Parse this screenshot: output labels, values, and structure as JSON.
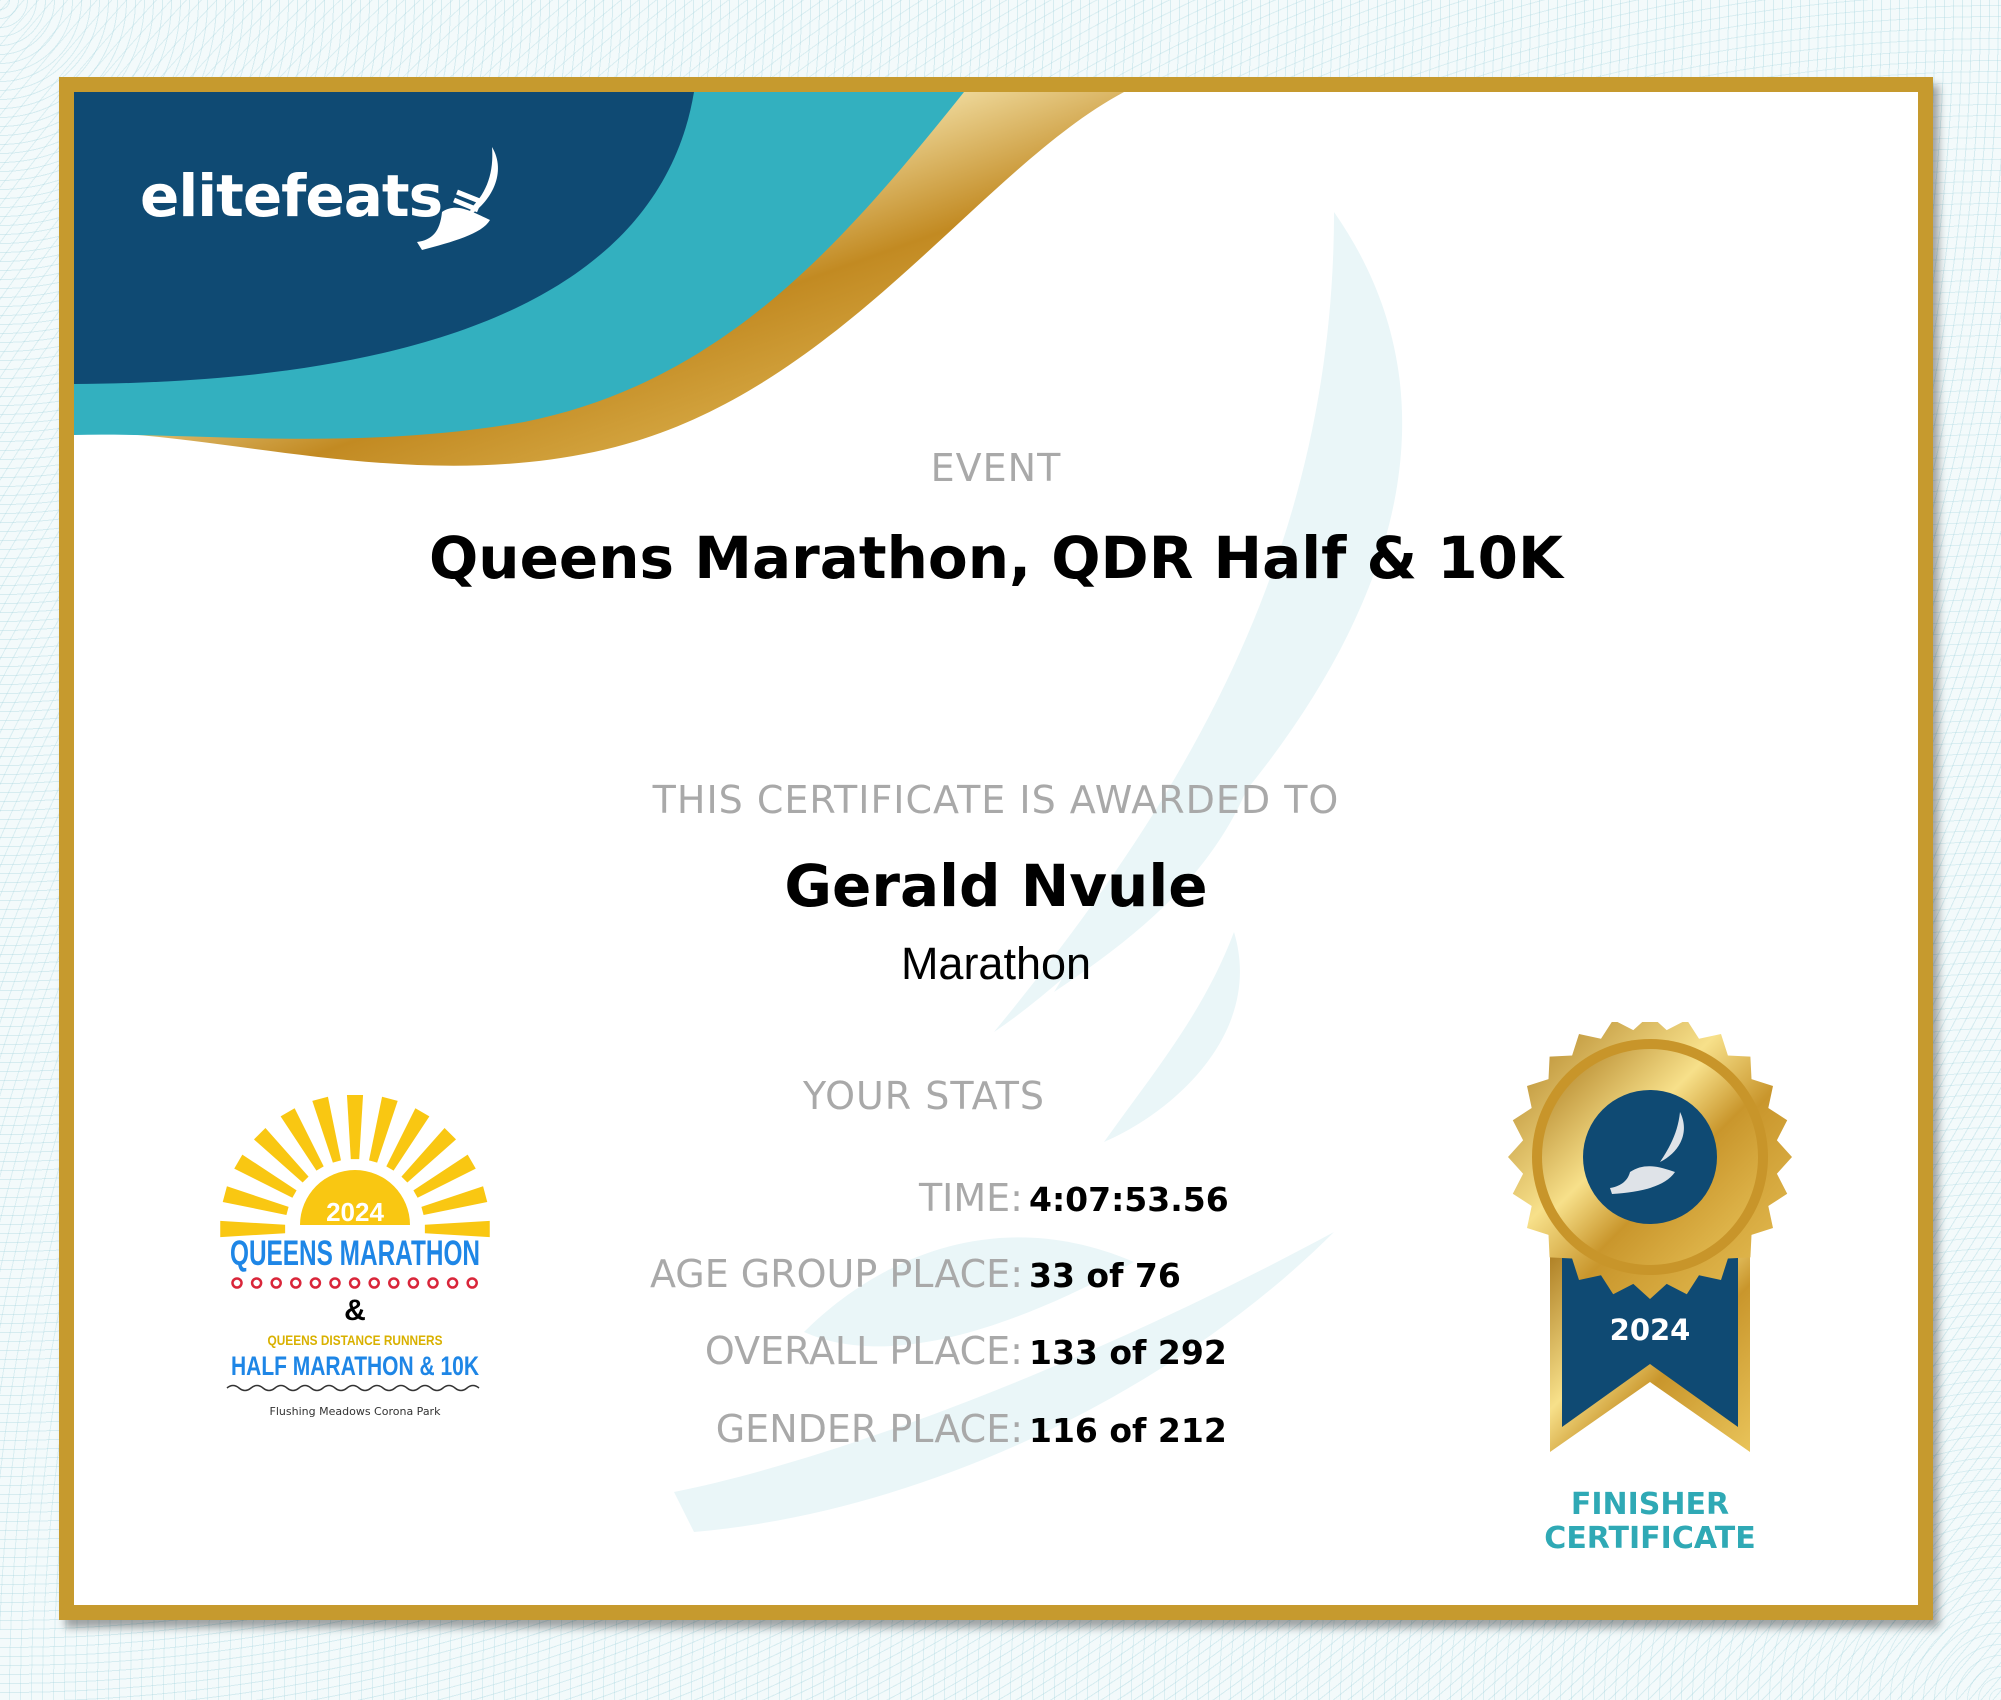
{
  "brand": {
    "name": "elitefeats",
    "icon": "winged-foot-icon"
  },
  "event": {
    "label": "EVENT",
    "title": "Queens Marathon, QDR Half & 10K"
  },
  "award": {
    "label": "THIS CERTIFICATE IS AWARDED TO",
    "name": "Gerald Nvule",
    "race": "Marathon"
  },
  "stats": {
    "label": "YOUR STATS",
    "rows": [
      {
        "label": "TIME:",
        "value": "4:07:53.56"
      },
      {
        "label": "AGE GROUP PLACE:",
        "value": "33 of 76"
      },
      {
        "label": "OVERALL PLACE:",
        "value": "133 of 292"
      },
      {
        "label": "GENDER PLACE:",
        "value": "116 of 212"
      }
    ]
  },
  "event_logo": {
    "year": "2024",
    "arc_text": "QUEENS DISTANCE RUNNERS",
    "line1": "QUEENS MARATHON",
    "amp": "&",
    "line2": "QUEENS DISTANCE RUNNERS",
    "line3": "HALF MARATHON & 10K",
    "location": "Flushing Meadows Corona Park"
  },
  "badge": {
    "year": "2024",
    "line1": "FINISHER",
    "line2": "CERTIFICATE"
  },
  "colors": {
    "navy": "#0f4a73",
    "teal": "#33b0bf",
    "gold": "#c69a2e",
    "label_gray": "#a9a9a9"
  }
}
